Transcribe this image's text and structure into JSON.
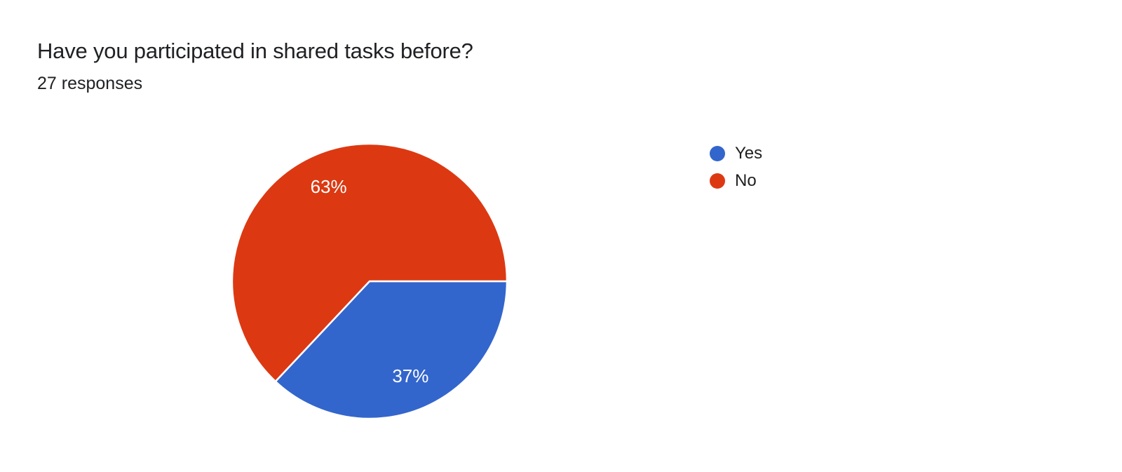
{
  "chart_data": {
    "type": "pie",
    "title": "Have you participated in shared tasks before?",
    "responses_label": "27 responses",
    "total_responses": 27,
    "legend_position": "right",
    "direction": "clockwise",
    "start_angle_deg": 0,
    "background": "#ffffff",
    "title_color": "#202124",
    "label_color": "#ffffff",
    "slices": [
      {
        "label": "Yes",
        "percent": 37,
        "display_label": "37%",
        "color": "#3366cc"
      },
      {
        "label": "No",
        "percent": 63,
        "display_label": "63%",
        "color": "#dc3912"
      }
    ]
  }
}
